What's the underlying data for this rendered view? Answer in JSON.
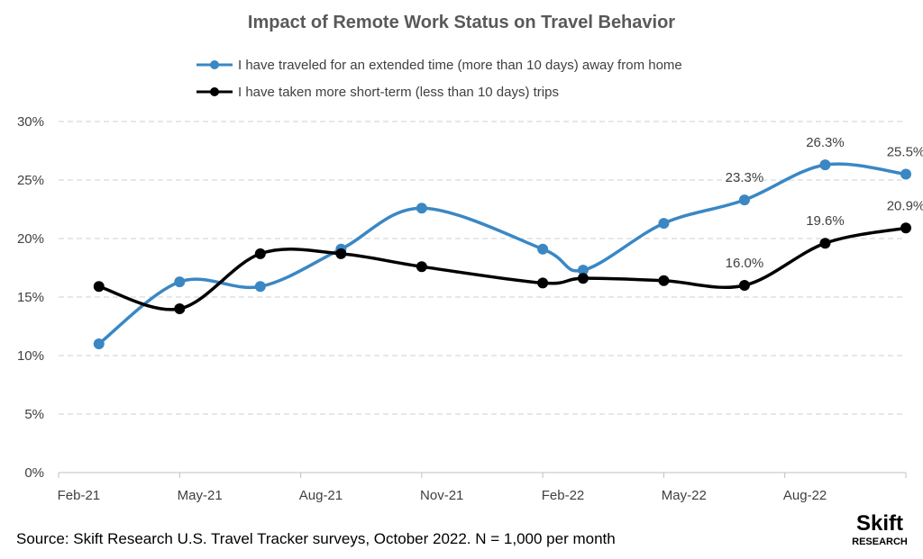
{
  "chart_data": {
    "type": "line",
    "title": "Impact of Remote Work Status on Travel Behavior",
    "xlabel": "",
    "ylabel": "",
    "ylim": [
      0,
      30
    ],
    "y_ticks": [
      "0%",
      "5%",
      "10%",
      "15%",
      "20%",
      "25%",
      "30%"
    ],
    "x_range": [
      "2021-01",
      "2022-10"
    ],
    "x_ticks": [
      "Feb-21",
      "May-21",
      "Aug-21",
      "Nov-21",
      "Feb-22",
      "May-22",
      "Aug-22"
    ],
    "grid": "horizontal dashed",
    "legend_position": "top",
    "series": [
      {
        "name": "I have traveled for an extended time (more than 10 days) away from home",
        "color": "#3a87c4",
        "x": [
          "2021-02",
          "2021-04",
          "2021-06",
          "2021-08",
          "2021-10",
          "2022-01",
          "2022-02",
          "2022-04",
          "2022-06",
          "2022-08",
          "2022-10"
        ],
        "values": [
          11.0,
          16.3,
          15.9,
          19.1,
          22.6,
          19.1,
          17.3,
          21.3,
          23.3,
          26.3,
          25.5
        ],
        "labels": [
          "",
          "",
          "",
          "",
          "",
          "",
          "",
          "",
          "23.3%",
          "26.3%",
          "25.5%"
        ]
      },
      {
        "name": "I have taken more short-term (less than 10 days) trips",
        "color": "#000000",
        "x": [
          "2021-02",
          "2021-04",
          "2021-06",
          "2021-08",
          "2021-10",
          "2022-01",
          "2022-02",
          "2022-04",
          "2022-06",
          "2022-08",
          "2022-10"
        ],
        "values": [
          15.9,
          14.0,
          18.7,
          18.7,
          17.6,
          16.2,
          16.6,
          16.4,
          16.0,
          19.6,
          20.9
        ],
        "labels": [
          "",
          "",
          "",
          "",
          "",
          "",
          "",
          "",
          "16.0%",
          "19.6%",
          "20.9%"
        ]
      }
    ]
  },
  "footer": {
    "source": "Source: Skift Research U.S. Travel Tracker surveys, October 2022. N = 1,000 per month",
    "logo_main": "Skift",
    "logo_sub": "RESEARCH"
  }
}
